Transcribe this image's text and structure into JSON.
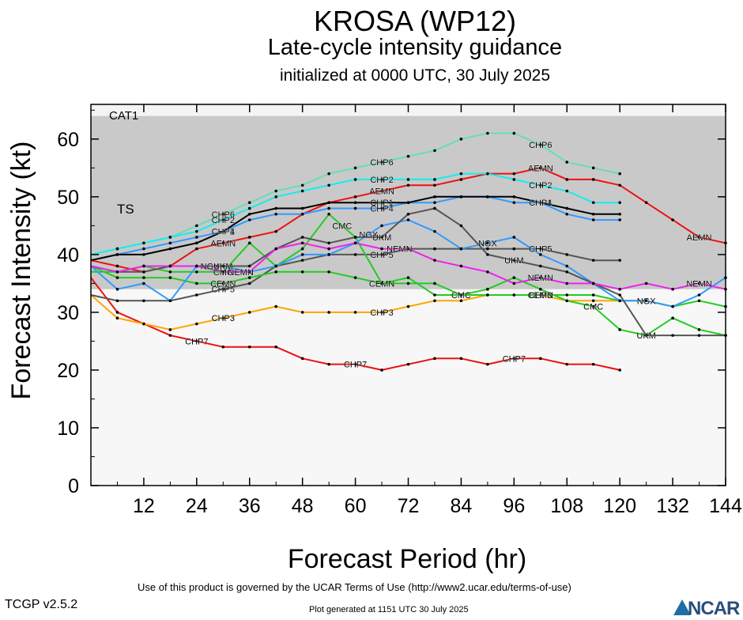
{
  "title": "KROSA (WP12)",
  "subtitle": "Late-cycle intensity guidance",
  "subtitle2": "initialized at 0000 UTC, 30 July 2025",
  "footer": {
    "terms": "Use of this product is governed by the UCAR Terms of Use (http://www2.ucar.edu/terms-of-use)",
    "version": "TCGP v2.5.2",
    "generated": "Plot generated at 1151 UTC   30 July 2025",
    "logo": "NCAR"
  },
  "chart_data": {
    "type": "line",
    "xlabel": "Forecast Period (hr)",
    "ylabel": "Forecast Intensity (kt)",
    "xlim": [
      0,
      144
    ],
    "ylim": [
      0,
      66
    ],
    "xticks": [
      12,
      24,
      36,
      48,
      60,
      72,
      84,
      96,
      108,
      120,
      132,
      144
    ],
    "yticks": [
      0,
      10,
      20,
      30,
      40,
      50,
      60
    ],
    "bands": [
      {
        "name": "TS",
        "from": 34,
        "to": 64,
        "color": "#c9c9c9"
      },
      {
        "name": "CAT1",
        "from": 64,
        "to": 66,
        "color": "#f4f4f4"
      }
    ],
    "series": [
      {
        "name": "CHP7",
        "color": "#ee1111",
        "x": [
          0,
          6,
          12,
          18,
          24,
          30,
          36,
          42,
          48,
          54,
          60,
          66,
          72,
          78,
          84,
          90,
          96,
          102,
          108,
          114,
          120
        ],
        "y": [
          36,
          30,
          28,
          26,
          25,
          24,
          24,
          24,
          22,
          21,
          21,
          20,
          21,
          22,
          22,
          21,
          22,
          22,
          21,
          21,
          20
        ],
        "labels": [
          [
            24,
            "CHP7"
          ],
          [
            60,
            "CHP7"
          ],
          [
            96,
            "CHP7"
          ]
        ]
      },
      {
        "name": "CHP3",
        "color": "#ffa500",
        "x": [
          0,
          6,
          12,
          18,
          24,
          30,
          36,
          42,
          48,
          54,
          60,
          66,
          72,
          78,
          84,
          90,
          96,
          102,
          108,
          114,
          120
        ],
        "y": [
          33,
          29,
          28,
          27,
          28,
          29,
          30,
          31,
          30,
          30,
          30,
          30,
          31,
          32,
          32,
          33,
          33,
          33,
          32,
          32,
          32
        ],
        "labels": [
          [
            30,
            "CHP3"
          ],
          [
            66,
            "CHP3"
          ],
          [
            102,
            "CHP3"
          ]
        ]
      },
      {
        "name": "AEMN",
        "color": "#ee1111",
        "x": [
          0,
          6,
          12,
          18,
          24,
          30,
          36,
          42,
          48,
          54,
          60,
          66,
          72,
          78,
          84,
          90,
          96,
          102,
          108,
          114,
          120,
          126,
          132,
          138,
          144
        ],
        "y": [
          39,
          38,
          37,
          38,
          41,
          42,
          43,
          44,
          47,
          49,
          50,
          51,
          52,
          52,
          53,
          54,
          54,
          55,
          53,
          53,
          52,
          49,
          46,
          43,
          42
        ],
        "labels": [
          [
            30,
            "AEMN"
          ],
          [
            66,
            "AEMN"
          ],
          [
            102,
            "AEMN"
          ],
          [
            138,
            "AEMN"
          ]
        ]
      },
      {
        "name": "CHP6",
        "color": "#66ddbb",
        "x": [
          0,
          6,
          12,
          18,
          24,
          30,
          36,
          42,
          48,
          54,
          60,
          66,
          72,
          78,
          84,
          90,
          96,
          102,
          108,
          114,
          120
        ],
        "y": [
          40,
          41,
          42,
          43,
          45,
          47,
          49,
          51,
          52,
          54,
          55,
          56,
          57,
          58,
          60,
          61,
          61,
          59,
          56,
          55,
          54
        ],
        "labels": [
          [
            30,
            "CHP6"
          ],
          [
            66,
            "CHP6"
          ],
          [
            102,
            "CHP6"
          ]
        ]
      },
      {
        "name": "CHP2",
        "color": "#11eeee",
        "x": [
          0,
          6,
          12,
          18,
          24,
          30,
          36,
          42,
          48,
          54,
          60,
          66,
          72,
          78,
          84,
          90,
          96,
          102,
          108,
          114,
          120
        ],
        "y": [
          40,
          41,
          42,
          43,
          44,
          46,
          48,
          50,
          51,
          52,
          53,
          53,
          53,
          53,
          54,
          54,
          53,
          52,
          51,
          49,
          49
        ],
        "labels": [
          [
            30,
            "CHP2"
          ],
          [
            66,
            "CHP2"
          ],
          [
            102,
            "CHP2"
          ]
        ]
      },
      {
        "name": "CHP4",
        "color": "#3399ff",
        "x": [
          0,
          6,
          12,
          18,
          24,
          30,
          36,
          42,
          48,
          54,
          60,
          66,
          72,
          78,
          84,
          90,
          96,
          102,
          108,
          114,
          120
        ],
        "y": [
          39,
          40,
          41,
          42,
          43,
          44,
          46,
          47,
          47,
          48,
          48,
          48,
          49,
          49,
          50,
          50,
          49,
          49,
          47,
          46,
          46
        ],
        "labels": [
          [
            30,
            "CHP4"
          ],
          [
            66,
            "CHP4"
          ],
          [
            102,
            "CHP4"
          ]
        ]
      },
      {
        "name": "CHP1",
        "color": "#000000",
        "x": [
          0,
          6,
          12,
          18,
          24,
          30,
          36,
          42,
          48,
          54,
          60,
          66,
          72,
          78,
          84,
          90,
          96,
          102,
          108,
          114,
          120
        ],
        "y": [
          39,
          40,
          40,
          41,
          42,
          44,
          47,
          48,
          48,
          49,
          49,
          49,
          49,
          50,
          50,
          50,
          50,
          49,
          48,
          47,
          47
        ],
        "labels": [
          [
            30,
            "CHP1"
          ],
          [
            66,
            "CHP1"
          ],
          [
            102,
            "CHP1"
          ]
        ]
      },
      {
        "name": "CHP5",
        "color": "#555555",
        "x": [
          0,
          6,
          12,
          18,
          24,
          30,
          36,
          42,
          48,
          54,
          60,
          66,
          72,
          78,
          84,
          90,
          96,
          102,
          108,
          114,
          120
        ],
        "y": [
          33,
          32,
          32,
          32,
          33,
          34,
          35,
          38,
          39,
          40,
          40,
          40,
          41,
          41,
          41,
          41,
          41,
          41,
          40,
          39,
          39
        ],
        "labels": [
          [
            30,
            "CHP5"
          ],
          [
            66,
            "CHP5"
          ],
          [
            102,
            "CHP5"
          ]
        ]
      },
      {
        "name": "CMC",
        "color": "#22cc22",
        "x": [
          0,
          6,
          12,
          18,
          24,
          30,
          36,
          42,
          48,
          54,
          60,
          66,
          72,
          78,
          84,
          90,
          96,
          102,
          108,
          114,
          120,
          126,
          132,
          138,
          144
        ],
        "y": [
          37,
          37,
          38,
          37,
          37,
          37,
          42,
          38,
          41,
          47,
          43,
          35,
          36,
          33,
          33,
          34,
          36,
          34,
          32,
          31,
          27,
          26,
          29,
          27,
          26
        ],
        "labels": [
          [
            30,
            "CMC"
          ],
          [
            57,
            "CMC"
          ],
          [
            84,
            "CMC"
          ],
          [
            114,
            "CMC"
          ]
        ]
      },
      {
        "name": "CEMN",
        "color": "#22cc22",
        "x": [
          0,
          6,
          12,
          18,
          24,
          30,
          36,
          42,
          48,
          54,
          60,
          66,
          72,
          78,
          84,
          90,
          96,
          102,
          108,
          114,
          120,
          126,
          132,
          138,
          144
        ],
        "y": [
          38,
          36,
          36,
          36,
          35,
          35,
          36,
          37,
          37,
          37,
          36,
          35,
          35,
          35,
          33,
          33,
          33,
          33,
          33,
          33,
          32,
          32,
          31,
          32,
          31
        ],
        "labels": [
          [
            30,
            "CEMN"
          ],
          [
            66,
            "CEMN"
          ],
          [
            102,
            "CEMN"
          ]
        ]
      },
      {
        "name": "NGX",
        "color": "#3399ff",
        "x": [
          0,
          6,
          12,
          18,
          24,
          30,
          36,
          42,
          48,
          54,
          60,
          66,
          72,
          78,
          84,
          90,
          96,
          102,
          108,
          114,
          120,
          126,
          132,
          138,
          144
        ],
        "y": [
          38,
          34,
          35,
          32,
          38,
          38,
          37,
          38,
          40,
          40,
          42,
          45,
          46,
          44,
          41,
          42,
          43,
          40,
          38,
          35,
          32,
          32,
          31,
          33,
          36
        ],
        "labels": [
          [
            27,
            "NGX"
          ],
          [
            63,
            "NGX"
          ],
          [
            90,
            "NGX"
          ],
          [
            126,
            "NGX"
          ]
        ]
      },
      {
        "name": "UKM",
        "color": "#555555",
        "x": [
          0,
          6,
          12,
          18,
          24,
          30,
          36,
          42,
          48,
          54,
          60,
          66,
          72,
          78,
          84,
          90,
          96,
          102,
          108,
          114,
          120,
          126,
          132,
          138,
          144
        ],
        "y": [
          38,
          37,
          37,
          38,
          38,
          38,
          38,
          41,
          43,
          42,
          43,
          43,
          47,
          48,
          45,
          40,
          39,
          38,
          37,
          35,
          33,
          26,
          26,
          26,
          26
        ],
        "labels": [
          [
            30,
            "UKM"
          ],
          [
            66,
            "UKM"
          ],
          [
            96,
            "UKM"
          ],
          [
            126,
            "UKM"
          ]
        ]
      },
      {
        "name": "NEMN",
        "color": "#ee22ee",
        "x": [
          0,
          6,
          12,
          18,
          24,
          30,
          36,
          42,
          48,
          54,
          60,
          66,
          72,
          78,
          84,
          90,
          96,
          102,
          108,
          114,
          120,
          126,
          132,
          138,
          144
        ],
        "y": [
          38,
          37,
          38,
          38,
          38,
          37,
          37,
          41,
          42,
          41,
          42,
          41,
          41,
          39,
          38,
          37,
          35,
          36,
          35,
          35,
          34,
          35,
          34,
          35,
          34
        ],
        "labels": [
          [
            34,
            "NEMN"
          ],
          [
            70,
            "NEMN"
          ],
          [
            102,
            "NEMN"
          ],
          [
            138,
            "NEMN"
          ]
        ]
      }
    ]
  }
}
